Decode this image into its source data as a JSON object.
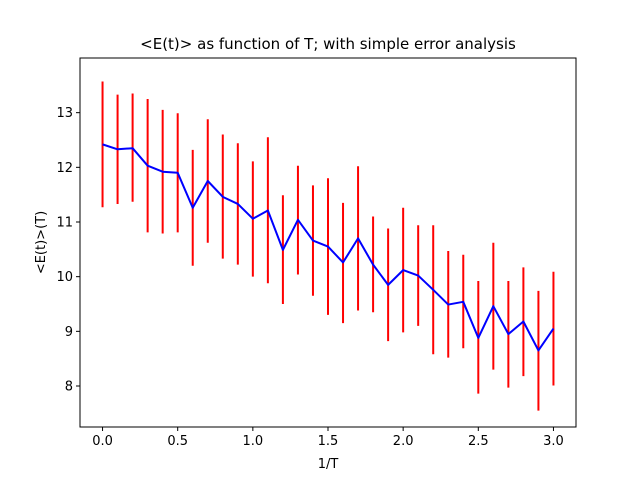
{
  "chart_data": {
    "type": "line",
    "title": "<E(t)> as function of T; with simple error analysis",
    "xlabel": "1/T",
    "ylabel": "<E(t)>(T)",
    "xlim": [
      -0.15,
      3.15
    ],
    "ylim": [
      7.25,
      14.0
    ],
    "xticks": [
      0.0,
      0.5,
      1.0,
      1.5,
      2.0,
      2.5,
      3.0
    ],
    "xtick_labels": [
      "0.0",
      "0.5",
      "1.0",
      "1.5",
      "2.0",
      "2.5",
      "3.0"
    ],
    "yticks": [
      8,
      9,
      10,
      11,
      12,
      13
    ],
    "ytick_labels": [
      "8",
      "9",
      "10",
      "11",
      "12",
      "13"
    ],
    "grid": false,
    "series": [
      {
        "line_color": "#0000ff",
        "error_color": "#ff0000",
        "x": [
          0.0,
          0.1,
          0.2,
          0.3,
          0.4,
          0.5,
          0.6,
          0.7,
          0.8,
          0.9,
          1.0,
          1.1,
          1.2,
          1.3,
          1.4,
          1.5,
          1.6,
          1.7,
          1.8,
          1.9,
          2.0,
          2.1,
          2.2,
          2.3,
          2.4,
          2.5,
          2.6,
          2.7,
          2.8,
          2.9,
          3.0
        ],
        "y": [
          12.42,
          12.33,
          12.35,
          12.03,
          11.92,
          11.9,
          11.26,
          11.75,
          11.46,
          11.33,
          11.06,
          11.21,
          10.49,
          11.04,
          10.66,
          10.55,
          10.26,
          10.7,
          10.22,
          9.85,
          10.12,
          10.02,
          9.76,
          9.49,
          9.54,
          8.88,
          9.46,
          8.95,
          9.18,
          8.65,
          9.05
        ],
        "err_low": [
          11.27,
          11.33,
          11.37,
          10.81,
          10.79,
          10.81,
          10.2,
          10.62,
          10.33,
          10.22,
          10.0,
          9.88,
          9.5,
          10.04,
          9.65,
          9.3,
          9.15,
          9.38,
          9.35,
          8.82,
          8.98,
          9.1,
          8.58,
          8.52,
          8.69,
          7.86,
          8.3,
          7.97,
          8.18,
          7.55,
          8.01
        ],
        "err_high": [
          13.57,
          13.33,
          13.35,
          13.25,
          13.05,
          12.99,
          12.32,
          12.88,
          12.6,
          12.44,
          12.11,
          12.55,
          11.49,
          12.03,
          11.67,
          11.8,
          11.35,
          12.02,
          11.1,
          10.88,
          11.26,
          10.94,
          10.94,
          10.47,
          10.4,
          9.92,
          10.62,
          9.92,
          10.17,
          9.74,
          10.09
        ]
      }
    ]
  }
}
